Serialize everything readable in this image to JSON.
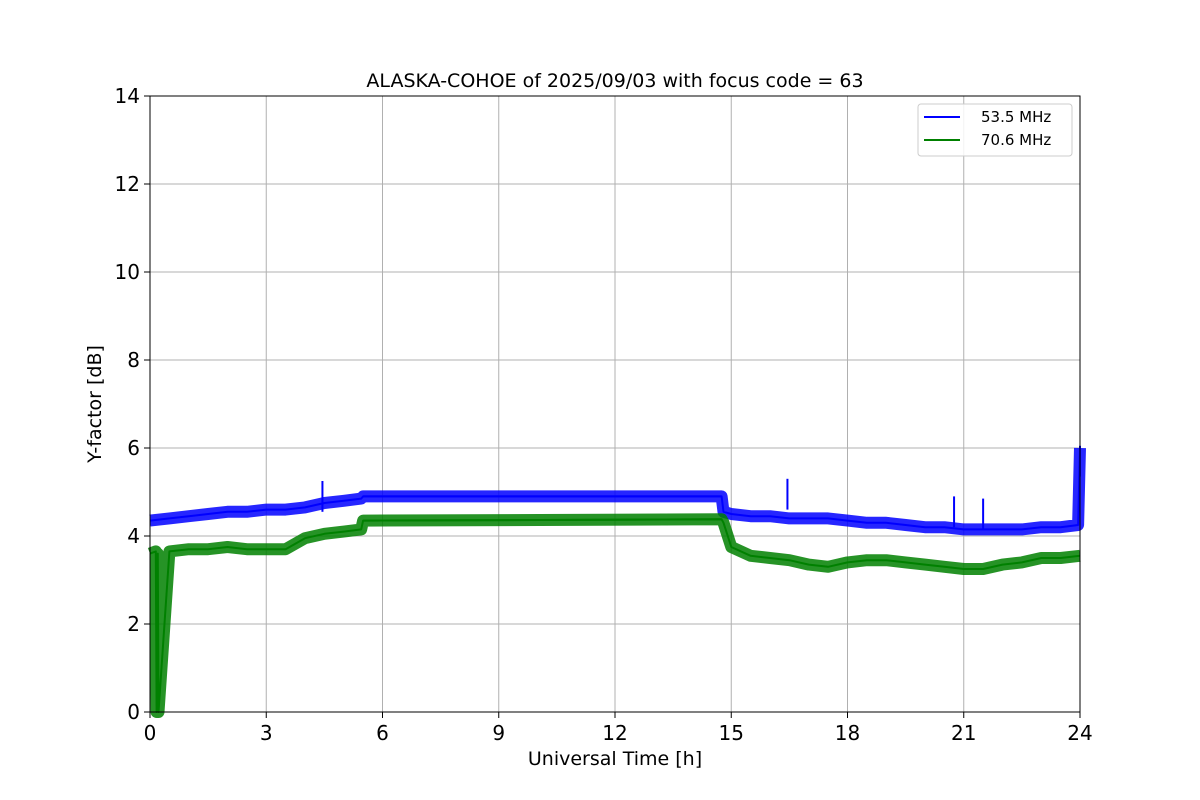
{
  "chart_data": {
    "type": "line",
    "title": "ALASKA-COHOE of 2025/09/03 with focus code = 63",
    "xlabel": "Universal Time [h]",
    "ylabel": "Y-factor [dB]",
    "xlim": [
      0,
      24
    ],
    "ylim": [
      0,
      14
    ],
    "xticks": [
      0,
      3,
      6,
      9,
      12,
      15,
      18,
      21,
      24
    ],
    "yticks": [
      0,
      2,
      4,
      6,
      8,
      10,
      12,
      14
    ],
    "grid": true,
    "legend_position": "top-right",
    "series": [
      {
        "name": "53.5 MHz",
        "color": "#0000ff",
        "x": [
          0,
          0.5,
          1,
          1.5,
          2,
          2.5,
          3,
          3.5,
          4,
          4.5,
          5,
          5.45,
          5.5,
          14.75,
          14.8,
          15,
          15.5,
          16,
          16.5,
          17,
          17.5,
          18,
          18.5,
          19,
          19.5,
          20,
          20.5,
          21,
          21.5,
          22,
          22.5,
          23,
          23.5,
          23.95,
          24
        ],
        "y": [
          4.35,
          4.4,
          4.45,
          4.5,
          4.55,
          4.55,
          4.6,
          4.6,
          4.65,
          4.75,
          4.8,
          4.85,
          4.9,
          4.9,
          4.55,
          4.5,
          4.45,
          4.45,
          4.4,
          4.4,
          4.4,
          4.35,
          4.3,
          4.3,
          4.25,
          4.2,
          4.2,
          4.15,
          4.15,
          4.15,
          4.15,
          4.2,
          4.2,
          4.25,
          6.0
        ],
        "spikes": [
          [
            4.45,
            5.25
          ],
          [
            16.45,
            5.3
          ],
          [
            20.75,
            4.9
          ],
          [
            21.5,
            4.85
          ],
          [
            24.0,
            6.05
          ]
        ]
      },
      {
        "name": "70.6 MHz",
        "color": "#008000",
        "x": [
          0,
          0.15,
          0.17,
          0.2,
          0.22,
          0.5,
          1,
          1.5,
          2,
          2.5,
          3,
          3.5,
          4,
          4.5,
          5,
          5.45,
          5.5,
          14.75,
          14.8,
          15,
          15.5,
          16,
          16.5,
          17,
          17.5,
          18,
          18.5,
          19,
          19.5,
          20,
          20.5,
          21,
          21.5,
          22,
          22.5,
          23,
          23.5,
          24
        ],
        "y": [
          3.6,
          3.65,
          0.0,
          3.6,
          0.0,
          3.65,
          3.7,
          3.7,
          3.75,
          3.7,
          3.7,
          3.7,
          3.95,
          4.05,
          4.1,
          4.15,
          4.35,
          4.38,
          4.3,
          3.75,
          3.55,
          3.5,
          3.45,
          3.35,
          3.3,
          3.4,
          3.45,
          3.45,
          3.4,
          3.35,
          3.3,
          3.25,
          3.25,
          3.35,
          3.4,
          3.5,
          3.5,
          3.55
        ],
        "spikes": []
      }
    ]
  }
}
